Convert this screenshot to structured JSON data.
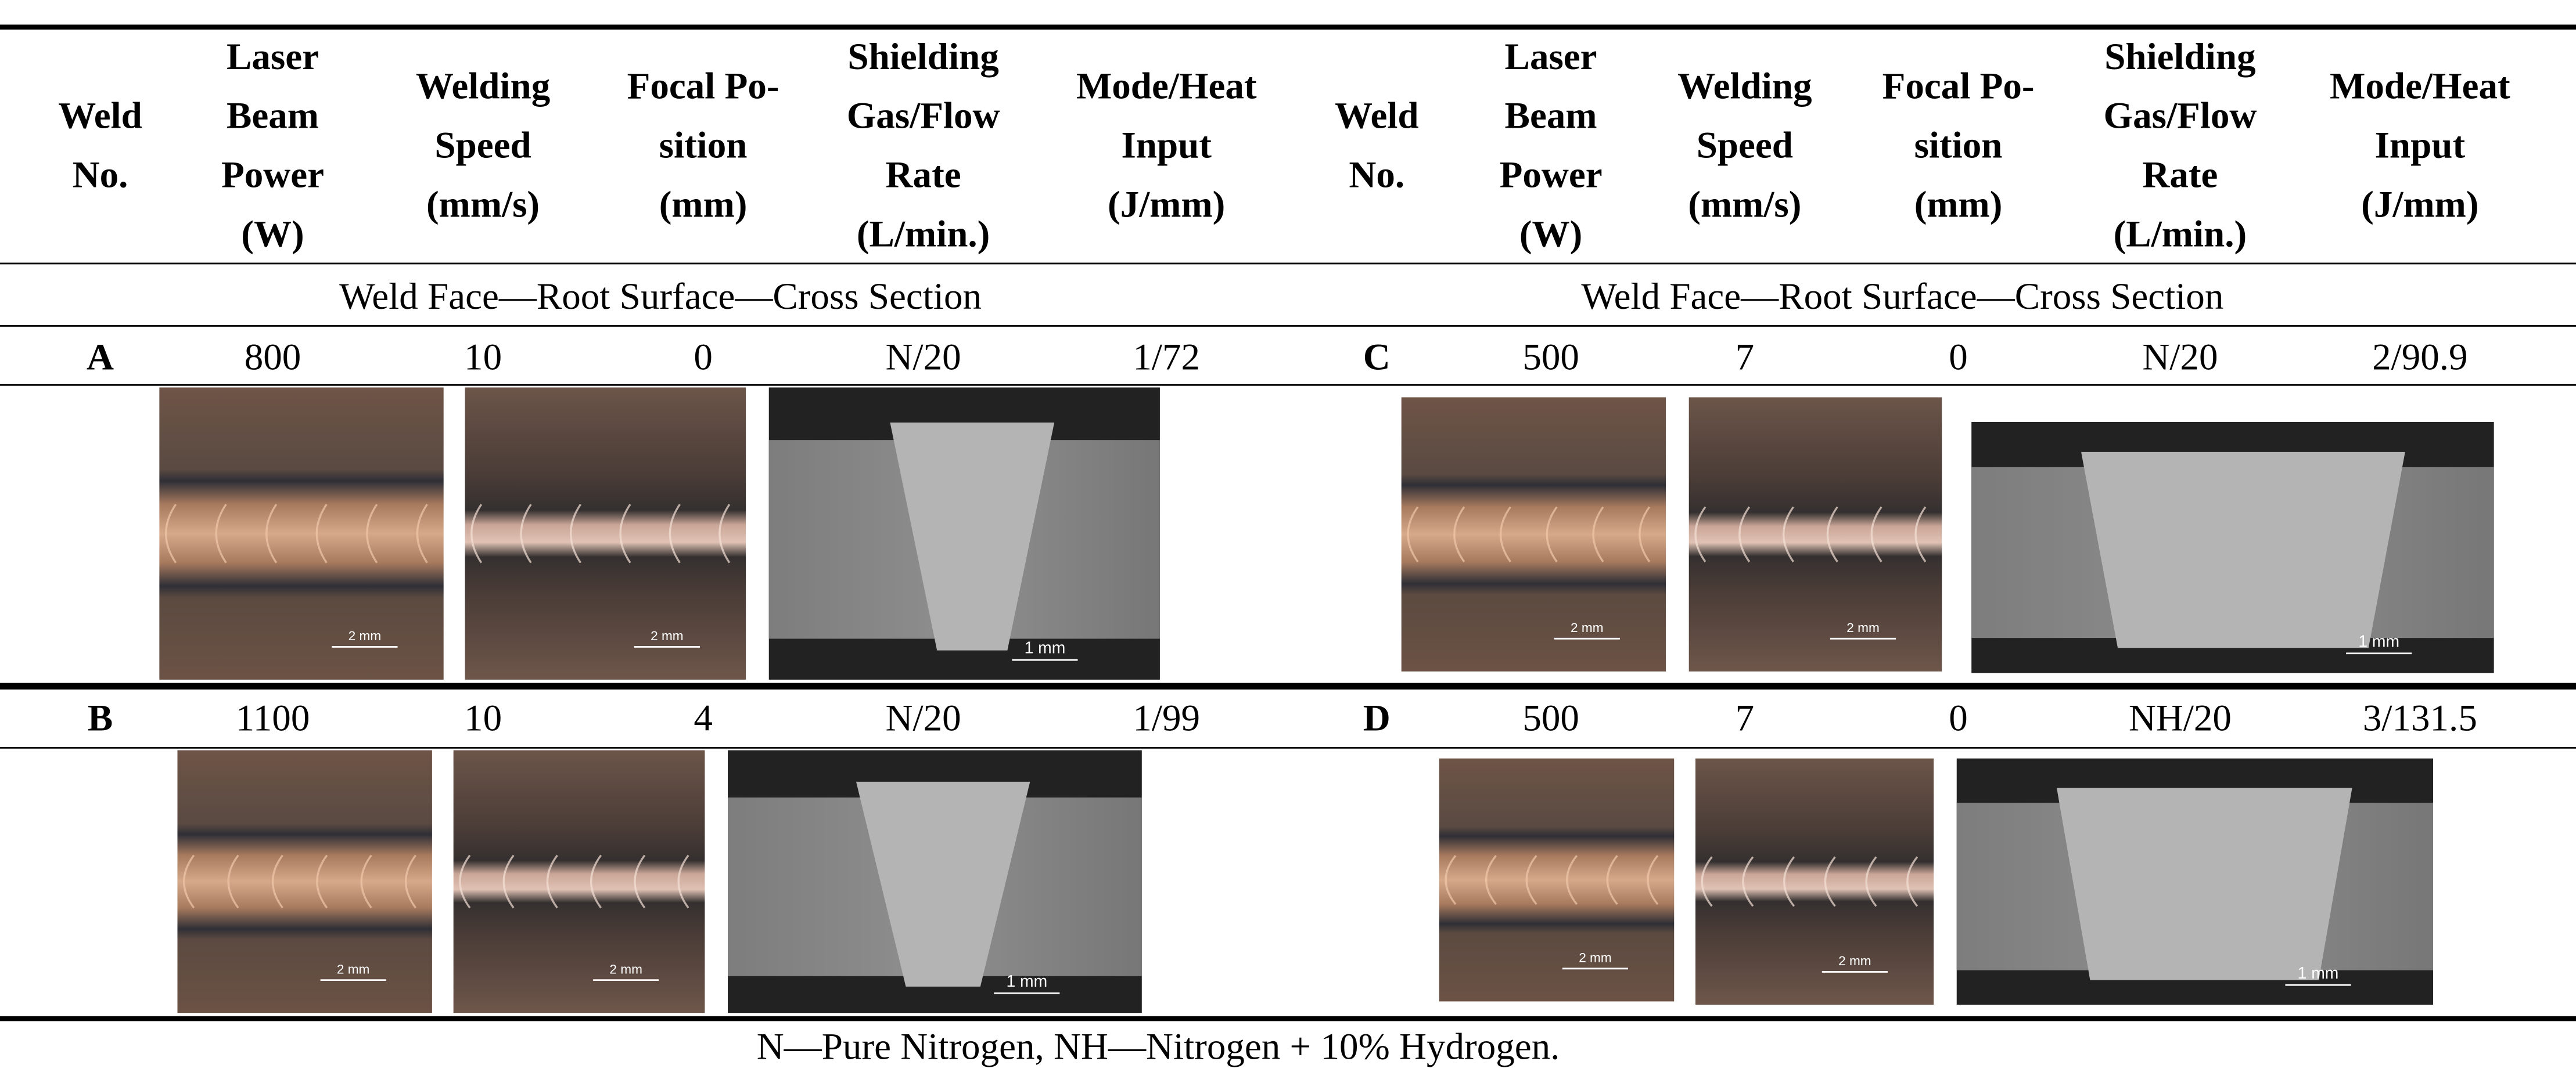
{
  "table": {
    "columns": [
      "Weld\nNo.",
      "Laser\nBeam\nPower\n(W)",
      "Welding\nSpeed\n(mm/s)",
      "Focal Po-\nsition\n(mm)",
      "Shielding\nGas/Flow\nRate\n(L/min.)",
      "Mode/Heat\nInput\n(J/mm)"
    ],
    "section_label": "Weld Face—Root Surface—Cross Section",
    "welds": [
      {
        "cells": [
          "A",
          "800",
          "10",
          "0",
          "N/20",
          "1/72"
        ],
        "scale_labels": [
          "2 mm",
          "2 mm",
          "1 mm"
        ]
      },
      {
        "cells": [
          "C",
          "500",
          "7",
          "0",
          "N/20",
          "2/90.9"
        ],
        "scale_labels": [
          "2 mm",
          "2 mm",
          "1 mm"
        ]
      },
      {
        "cells": [
          "B",
          "1100",
          "10",
          "4",
          "N/20",
          "1/99"
        ],
        "scale_labels": [
          "2 mm",
          "2 mm",
          "1 mm"
        ]
      },
      {
        "cells": [
          "D",
          "500",
          "7",
          "0",
          "NH/20",
          "3/131.5"
        ],
        "scale_labels": [
          "2 mm",
          "2 mm",
          "1 mm"
        ]
      }
    ],
    "footnote": "N—Pure Nitrogen, NH—Nitrogen + 10% Hydrogen."
  }
}
